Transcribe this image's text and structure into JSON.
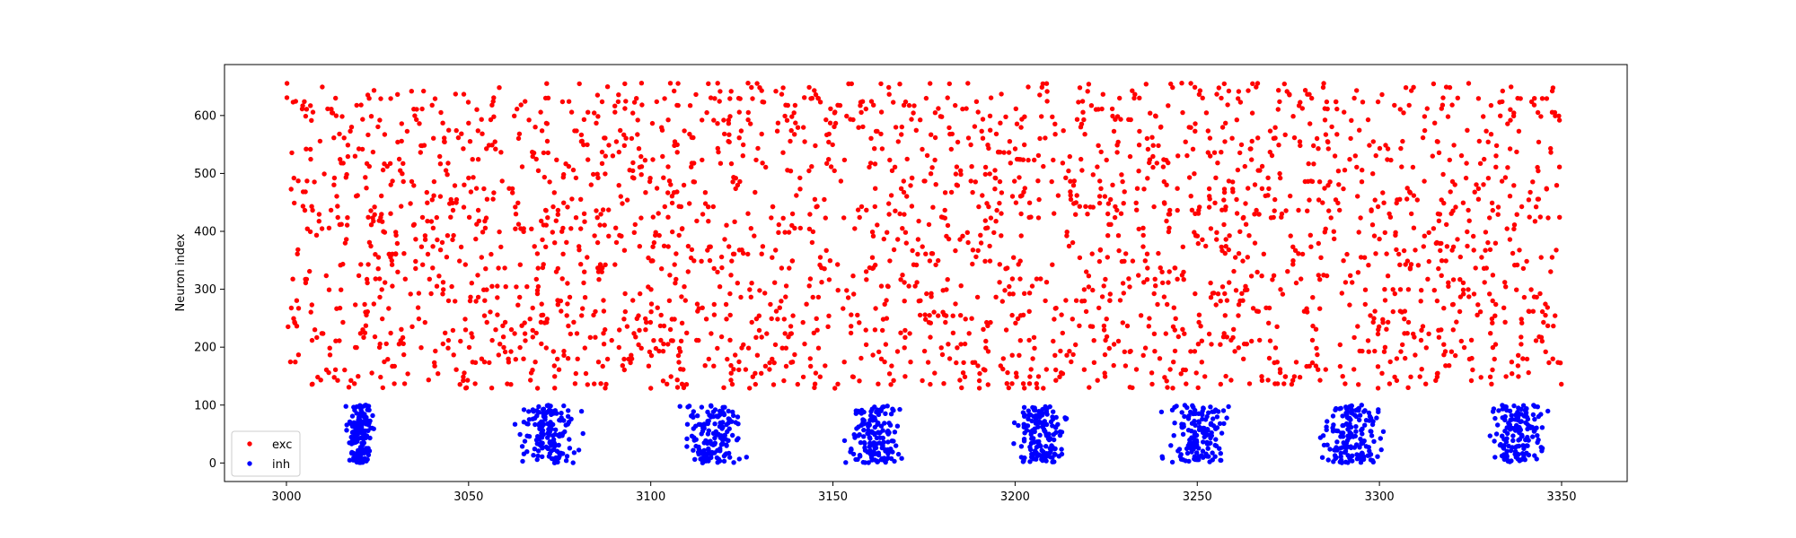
{
  "chart_data": {
    "type": "scatter",
    "title": "",
    "xlabel": "",
    "ylabel": "Neuron index",
    "xlim": [
      2983,
      3368
    ],
    "ylim": [
      -32,
      688
    ],
    "xticks": [
      3000,
      3050,
      3100,
      3150,
      3200,
      3250,
      3300,
      3350
    ],
    "yticks": [
      0,
      100,
      200,
      300,
      400,
      500,
      600
    ],
    "grid": false,
    "legend_position": "bottom-left",
    "series": [
      {
        "name": "exc",
        "color": "#ff0000",
        "marker": "circle",
        "description": "dense random spikes of excitatory neurons (index ~130-655) spanning t=3000-3350",
        "t_range": [
          3000,
          3350
        ],
        "index_range": [
          130,
          655
        ],
        "count": 2600
      },
      {
        "name": "inh",
        "color": "#0000ff",
        "marker": "circle",
        "description": "inhibitory neurons (index 0-100) firing in periodic bursts",
        "index_range": [
          0,
          100
        ],
        "bursts": [
          {
            "center": 3020,
            "width": 6,
            "count": 150
          },
          {
            "center": 3072,
            "width": 14,
            "count": 150
          },
          {
            "center": 3117,
            "width": 12,
            "count": 150
          },
          {
            "center": 3161,
            "width": 12,
            "count": 150
          },
          {
            "center": 3207,
            "width": 12,
            "count": 150
          },
          {
            "center": 3250,
            "width": 14,
            "count": 150
          },
          {
            "center": 3293,
            "width": 14,
            "count": 150
          },
          {
            "center": 3338,
            "width": 12,
            "count": 150
          }
        ]
      }
    ]
  }
}
